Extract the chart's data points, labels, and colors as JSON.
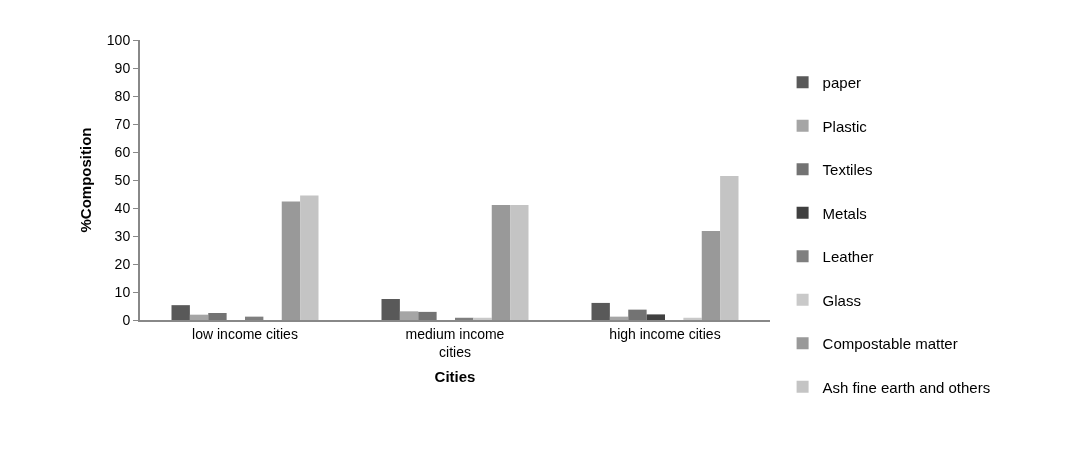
{
  "chart_data": {
    "type": "bar",
    "xlabel": "Cities",
    "ylabel": "%Composition",
    "categories": [
      "low income cities",
      "medium income cities",
      "high income cities"
    ],
    "series": [
      {
        "name": "paper",
        "color": "#595959",
        "values": [
          5.3,
          7.5,
          6.1
        ]
      },
      {
        "name": "Plastic",
        "color": "#a5a5a5",
        "values": [
          1.9,
          3.1,
          1.2
        ]
      },
      {
        "name": "Textiles",
        "color": "#737373",
        "values": [
          2.5,
          2.9,
          3.7
        ]
      },
      {
        "name": "Metals",
        "color": "#404040",
        "values": [
          0,
          0,
          2.0
        ]
      },
      {
        "name": "Leather",
        "color": "#7f7f7f",
        "values": [
          1.2,
          0.8,
          0
        ]
      },
      {
        "name": "Glass",
        "color": "#c9c9c9",
        "values": [
          0,
          0.8,
          0.8
        ]
      },
      {
        "name": "Compostable matter",
        "color": "#999999",
        "values": [
          42.3,
          41.1,
          31.8
        ]
      },
      {
        "name": "Ash fine earth and others",
        "color": "#c4c4c4",
        "values": [
          44.5,
          41.1,
          51.4
        ]
      }
    ],
    "ylim": [
      0,
      100
    ],
    "yticks": [
      0,
      10,
      20,
      30,
      40,
      50,
      60,
      70,
      80,
      90,
      100
    ],
    "grid": false,
    "legend": "right"
  }
}
